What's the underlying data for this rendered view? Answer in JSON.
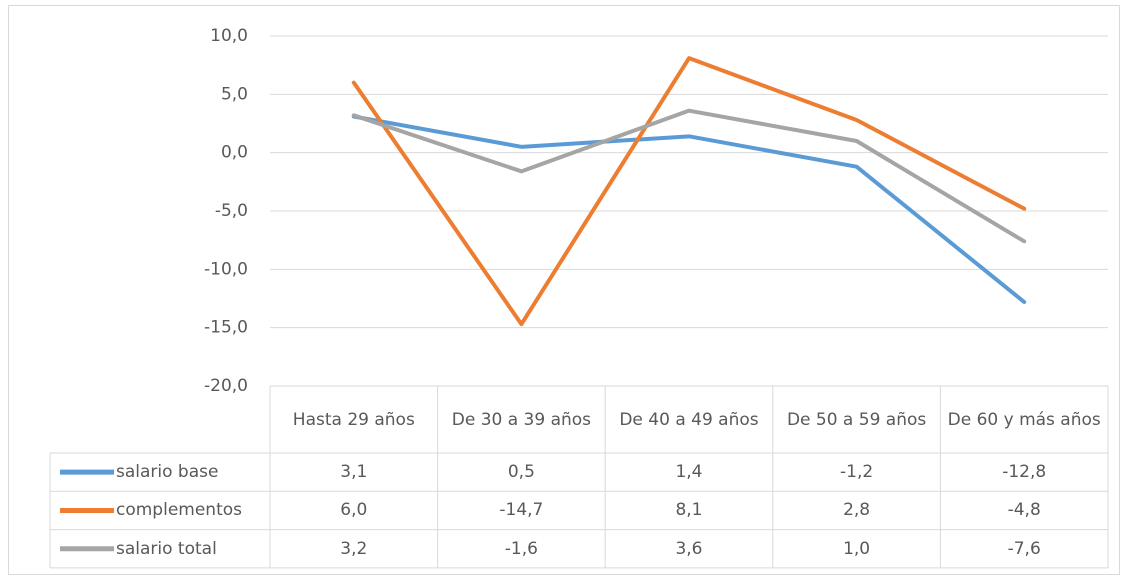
{
  "chart_data": {
    "type": "line",
    "categories": [
      "Hasta 29 años",
      "De 30 a 39 años",
      "De 40 a 49 años",
      "De 50 a 59 años",
      "De 60 y más años"
    ],
    "series": [
      {
        "name": "salario base",
        "color": "#5b9bd5",
        "values": [
          3.1,
          0.5,
          1.4,
          -1.2,
          -12.8
        ],
        "value_labels": [
          "3,1",
          "0,5",
          "1,4",
          "-1,2",
          "-12,8"
        ]
      },
      {
        "name": "complementos",
        "color": "#ed7d31",
        "values": [
          6.0,
          -14.7,
          8.1,
          2.8,
          -4.8
        ],
        "value_labels": [
          "6,0",
          "-14,7",
          "8,1",
          "2,8",
          "-4,8"
        ]
      },
      {
        "name": "salario total",
        "color": "#a5a5a5",
        "values": [
          3.2,
          -1.6,
          3.6,
          1.0,
          -7.6
        ],
        "value_labels": [
          "3,2",
          "-1,6",
          "3,6",
          "1,0",
          "-7,6"
        ]
      }
    ],
    "ylim": [
      -20,
      10
    ],
    "yticks": [
      {
        "value": -20,
        "label": "-20,0"
      },
      {
        "value": -15,
        "label": "-15,0"
      },
      {
        "value": -10,
        "label": "-10,0"
      },
      {
        "value": -5,
        "label": "-5,0"
      },
      {
        "value": 0,
        "label": "0,0"
      },
      {
        "value": 5,
        "label": "5,0"
      },
      {
        "value": 10,
        "label": "10,0"
      }
    ],
    "grid": true,
    "data_table": true
  }
}
